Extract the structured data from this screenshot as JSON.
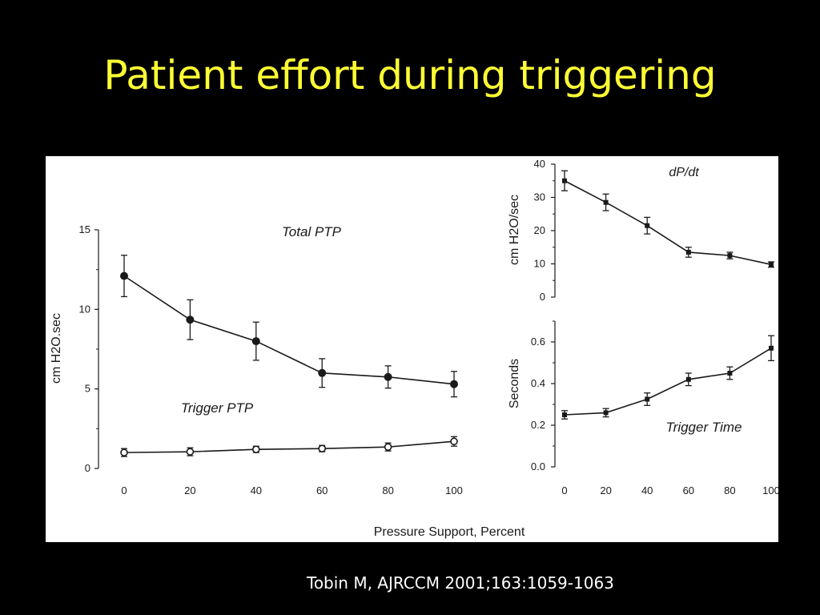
{
  "slide": {
    "title": "Patient effort during triggering",
    "citation": "Tobin M, AJRCCM 2001;163:1059-1063"
  },
  "colors": {
    "background": "#000000",
    "title": "#ffff33",
    "citation": "#ffffff",
    "panel": "#ffffff",
    "ink": "#1a1a1a"
  },
  "figure": {
    "shared_xlabel": "Pressure Support, Percent"
  },
  "chart_data": [
    {
      "id": "ptp",
      "type": "line",
      "title": "",
      "xlabel": "",
      "ylabel": "cm H2O.sec",
      "x": [
        0,
        20,
        40,
        60,
        80,
        100
      ],
      "x_ticks": [
        "0",
        "20",
        "40",
        "60",
        "80",
        "100"
      ],
      "y_ticks": [
        "0",
        "5",
        "10",
        "15"
      ],
      "xlim": [
        0,
        100
      ],
      "ylim": [
        0,
        15
      ],
      "grid": false,
      "series": [
        {
          "name": "Total PTP",
          "marker": "filled-circle",
          "values": [
            12.1,
            9.35,
            8.0,
            6.0,
            5.75,
            5.3
          ],
          "error": [
            1.3,
            1.25,
            1.2,
            0.9,
            0.7,
            0.8
          ]
        },
        {
          "name": "Trigger PTP",
          "marker": "open-circle",
          "values": [
            1.0,
            1.05,
            1.2,
            1.25,
            1.35,
            1.7
          ],
          "error": [
            0.25,
            0.25,
            0.2,
            0.2,
            0.25,
            0.3
          ]
        }
      ]
    },
    {
      "id": "dpdt",
      "type": "line",
      "title": "dP/dt",
      "xlabel": "",
      "ylabel": "cm H2O/sec",
      "x": [
        0,
        20,
        40,
        60,
        80,
        100
      ],
      "x_ticks": [],
      "y_ticks": [
        "0",
        "10",
        "20",
        "30",
        "40"
      ],
      "xlim": [
        0,
        100
      ],
      "ylim": [
        0,
        40
      ],
      "grid": false,
      "series": [
        {
          "name": "",
          "marker": "small-square",
          "values": [
            35,
            28.5,
            21.5,
            13.5,
            12.5,
            9.8
          ],
          "error": [
            3,
            2.5,
            2.5,
            1.5,
            1,
            0.8
          ]
        }
      ]
    },
    {
      "id": "trigger-time",
      "type": "line",
      "title": "",
      "xlabel": "",
      "ylabel": "Seconds",
      "x": [
        0,
        20,
        40,
        60,
        80,
        100
      ],
      "x_ticks": [
        "0",
        "20",
        "40",
        "60",
        "80",
        "100"
      ],
      "y_ticks": [
        "0.0",
        "0.2",
        "0.4",
        "0.6"
      ],
      "xlim": [
        0,
        100
      ],
      "ylim": [
        0,
        0.7
      ],
      "grid": false,
      "series": [
        {
          "name": "Trigger Time",
          "marker": "small-square",
          "values": [
            0.25,
            0.26,
            0.325,
            0.42,
            0.45,
            0.57
          ],
          "error": [
            0.02,
            0.02,
            0.03,
            0.03,
            0.03,
            0.06
          ]
        }
      ]
    }
  ]
}
